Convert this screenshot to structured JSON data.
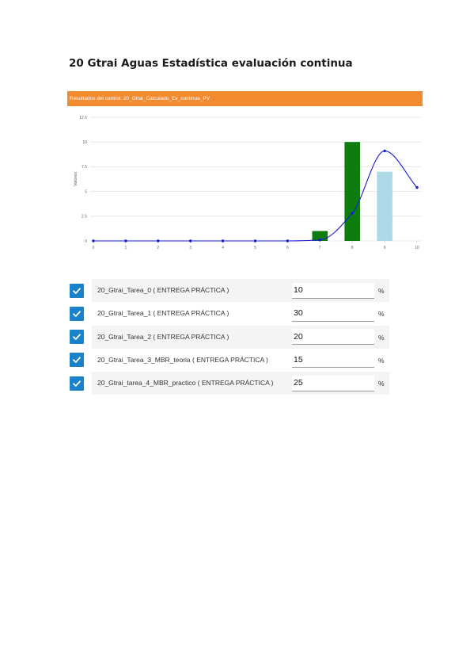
{
  "page": {
    "title": "20 Gtrai Aguas Estadística evaluación continua"
  },
  "chart_header": {
    "label": "Resultados del control: 20_Gtrai_Calculado_Ev_continua_PV"
  },
  "chart_data": {
    "type": "bar",
    "title": "",
    "ylabel": "Valores",
    "xlabel": "",
    "categories": [
      "0",
      "1",
      "2",
      "3",
      "4",
      "5",
      "6",
      "7",
      "8",
      "9",
      "10"
    ],
    "x": [
      0,
      1,
      2,
      3,
      4,
      5,
      6,
      7,
      8,
      9,
      10
    ],
    "ylim": [
      0,
      12.5
    ],
    "yticks": [
      0,
      2.5,
      5,
      7.5,
      10,
      12.5
    ],
    "ytick_labels": [
      "0",
      "2.5",
      "5",
      "7.5",
      "10",
      "12.5"
    ],
    "grid": true,
    "series": [
      {
        "kind": "bar",
        "values": [
          0,
          0,
          0,
          0,
          0,
          0,
          0,
          1,
          10,
          0,
          0
        ],
        "color": "#0e7d0e"
      },
      {
        "kind": "bar",
        "values": [
          0,
          0,
          0,
          0,
          0,
          0,
          0,
          0,
          0,
          7,
          0
        ],
        "color": "#add8e6"
      },
      {
        "kind": "line",
        "values": [
          0,
          0,
          0,
          0,
          0,
          0,
          0,
          0.1,
          2.8,
          9.1,
          5.4
        ],
        "color": "#1a1ad6"
      }
    ]
  },
  "tasks": [
    {
      "label": "20_Gtrai_Tarea_0 ( ENTREGA PRÁCTICA )",
      "value": "10",
      "unit": "%",
      "checked": true
    },
    {
      "label": "20_Gtrai_Tarea_1 ( ENTREGA PRÁCTICA )",
      "value": "30",
      "unit": "%",
      "checked": true
    },
    {
      "label": "20_Gtrai_Tarea_2 ( ENTREGA PRÁCTICA )",
      "value": "20",
      "unit": "%",
      "checked": true
    },
    {
      "label": "20_Gtrai_Tarea_3_MBR_teoria ( ENTREGA PRÁCTICA )",
      "value": "15",
      "unit": "%",
      "checked": true
    },
    {
      "label": "20_Gtrai_tarea_4_MBR_practico ( ENTREGA PRÁCTICA )",
      "value": "25",
      "unit": "%",
      "checked": true
    }
  ],
  "icons": {
    "checkbox": "check-icon"
  },
  "colors": {
    "header_bg": "#f28a30",
    "checkbox_bg": "#1a82c8",
    "bar_primary": "#0e7d0e",
    "bar_secondary": "#add8e6",
    "line": "#1a1ad6"
  }
}
